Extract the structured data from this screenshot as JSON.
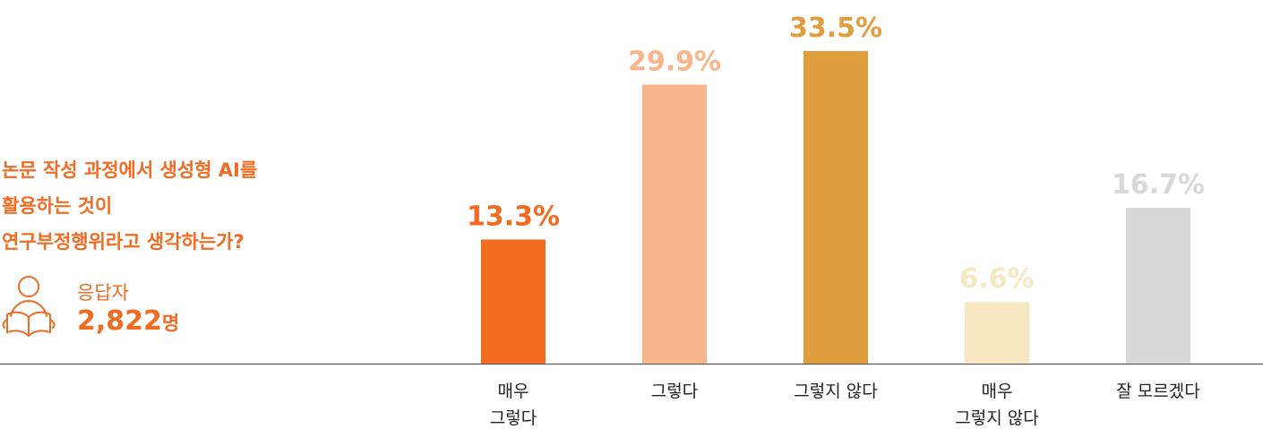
{
  "question": {
    "lines": [
      "논문 작성 과정에서 생성형 AI를",
      "활용하는 것이",
      "연구부정행위라고 생각하는가?"
    ]
  },
  "respondents": {
    "label": "응답자",
    "count": "2,822",
    "unit": "명",
    "icon": "person-reading-icon"
  },
  "colors": {
    "accent": "#f26b21",
    "axis": "#555555"
  },
  "chart_data": {
    "type": "bar",
    "categories": [
      [
        "매우",
        "그렇다"
      ],
      [
        "그렇다"
      ],
      [
        "그렇지 않다"
      ],
      [
        "매우",
        "그렇지 않다"
      ],
      [
        "잘 모르겠다"
      ]
    ],
    "values": [
      13.3,
      29.9,
      33.5,
      6.6,
      16.7
    ],
    "value_labels": [
      "13.3%",
      "29.9%",
      "33.5%",
      "6.6%",
      "16.7%"
    ],
    "colors": [
      "#f26b21",
      "#f9b58c",
      "#e19e3f",
      "#f7e8c2",
      "#d8d8d8"
    ],
    "ylim": [
      0,
      33.5
    ],
    "grid": false,
    "legend": "none"
  }
}
